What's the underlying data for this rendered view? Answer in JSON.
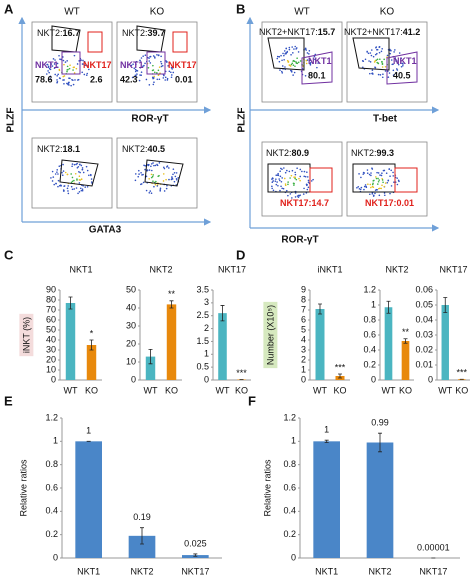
{
  "flow_panels": [
    {
      "label": "A",
      "columns": [
        "WT",
        "KO"
      ],
      "y_axis": "PLZF",
      "rows": [
        {
          "x_axis": "ROR-γT",
          "plots": [
            {
              "gates": [
                {
                  "name": "NKT2:",
                  "value": 16.7,
                  "color": "#111111"
                },
                {
                  "name": "NKT1",
                  "value": 78.6,
                  "color": "#7030a0"
                },
                {
                  "name": "NKT17",
                  "value": 2.6,
                  "color": "#e0201b"
                }
              ]
            },
            {
              "gates": [
                {
                  "name": "NKT2:",
                  "value": 39.7,
                  "color": "#111111"
                },
                {
                  "name": "NKT1",
                  "value": 42.3,
                  "color": "#7030a0"
                },
                {
                  "name": "NKT17",
                  "value": 0.01,
                  "color": "#e0201b"
                }
              ]
            }
          ]
        },
        {
          "x_axis": "GATA3",
          "plots": [
            {
              "gates": [
                {
                  "name": "NKT2:",
                  "value": 18.1,
                  "color": "#111111"
                }
              ]
            },
            {
              "gates": [
                {
                  "name": "NKT2:",
                  "value": 40.5,
                  "color": "#111111"
                }
              ]
            }
          ]
        }
      ]
    },
    {
      "label": "B",
      "columns": [
        "WT",
        "KO"
      ],
      "y_axis": "PLZF",
      "rows": [
        {
          "x_axis": "T-bet",
          "plots": [
            {
              "gates": [
                {
                  "name": "NKT2+NKT17:",
                  "value": 15.7,
                  "color": "#111111"
                },
                {
                  "name": "NKT1",
                  "value": 80.1,
                  "color": "#7030a0"
                }
              ]
            },
            {
              "gates": [
                {
                  "name": "NKT2+NKT17:",
                  "value": 41.2,
                  "color": "#111111"
                },
                {
                  "name": "NKT1",
                  "value": 40.5,
                  "color": "#7030a0"
                }
              ]
            }
          ]
        },
        {
          "x_axis": "ROR-γT",
          "plots": [
            {
              "gates": [
                {
                  "name": "NKT2:",
                  "value": 80.9,
                  "color": "#111111"
                },
                {
                  "name": "NKT17:",
                  "value": 14.7,
                  "color": "#e0201b"
                }
              ]
            },
            {
              "gates": [
                {
                  "name": "NKT2:",
                  "value": 99.3,
                  "color": "#111111"
                },
                {
                  "name": "NKT17:",
                  "value": 0.01,
                  "color": "#e0201b"
                }
              ]
            }
          ]
        }
      ]
    }
  ],
  "chart_data": [
    {
      "type": "bar",
      "panel": "C",
      "ylabel": "iNKT (%)",
      "ylabel_background": "#f4dcdc",
      "title": "NKT1",
      "categories": [
        "WT",
        "KO"
      ],
      "values": [
        77,
        35
      ],
      "errors": [
        6,
        5
      ],
      "colors": [
        "#4bb5c1",
        "#e8890c"
      ],
      "significance": [
        null,
        "*"
      ],
      "ylim": [
        0,
        90
      ],
      "yticks": [
        0,
        10,
        20,
        30,
        40,
        50,
        60,
        70,
        80,
        90
      ]
    },
    {
      "type": "bar",
      "title": "NKT2",
      "categories": [
        "WT",
        "KO"
      ],
      "values": [
        13,
        42
      ],
      "errors": [
        4,
        2
      ],
      "colors": [
        "#4bb5c1",
        "#e8890c"
      ],
      "significance": [
        null,
        "**"
      ],
      "ylim": [
        0,
        50
      ],
      "yticks": [
        0,
        10,
        20,
        30,
        40,
        50
      ]
    },
    {
      "type": "bar",
      "title": "NKT17",
      "categories": [
        "WT",
        "KO"
      ],
      "values": [
        2.6,
        0.02
      ],
      "errors": [
        0.3,
        0
      ],
      "colors": [
        "#4bb5c1",
        "#e8890c"
      ],
      "significance": [
        null,
        "***"
      ],
      "ylim": [
        0,
        3.5
      ],
      "yticks": [
        0,
        0.5,
        1,
        1.5,
        2,
        2.5,
        3,
        3.5
      ]
    },
    {
      "type": "bar",
      "panel": "D",
      "ylabel": "Number (X10⁵)",
      "ylabel_background": "#d6e9bf",
      "title": "iNKT1",
      "categories": [
        "WT",
        "KO"
      ],
      "values": [
        7.1,
        0.4
      ],
      "errors": [
        0.5,
        0.2
      ],
      "colors": [
        "#4bb5c1",
        "#e8890c"
      ],
      "significance": [
        null,
        "***"
      ],
      "ylim": [
        0,
        9
      ],
      "yticks": [
        0,
        1,
        2,
        3,
        4,
        5,
        6,
        7,
        8,
        9
      ]
    },
    {
      "type": "bar",
      "title": "NKT2",
      "categories": [
        "WT",
        "KO"
      ],
      "values": [
        0.97,
        0.52
      ],
      "errors": [
        0.08,
        0.03
      ],
      "colors": [
        "#4bb5c1",
        "#e8890c"
      ],
      "significance": [
        null,
        "**"
      ],
      "ylim": [
        0,
        1.2
      ],
      "yticks": [
        0,
        0.2,
        0.4,
        0.6,
        0.8,
        1,
        1.2
      ]
    },
    {
      "type": "bar",
      "title": "NKT17",
      "categories": [
        "WT",
        "KO"
      ],
      "values": [
        0.05,
        0.0005
      ],
      "errors": [
        0.005,
        0
      ],
      "colors": [
        "#4bb5c1",
        "#e8890c"
      ],
      "significance": [
        null,
        "***"
      ],
      "ylim": [
        0,
        0.06
      ],
      "yticks": [
        0,
        0.01,
        0.02,
        0.03,
        0.04,
        0.05,
        0.06
      ]
    },
    {
      "type": "bar",
      "panel": "E",
      "ylabel": "Relative ratios",
      "categories": [
        "NKT1",
        "NKT2",
        "NKT17"
      ],
      "values": [
        1,
        0.19,
        0.025
      ],
      "errors": [
        0,
        0.07,
        0.01
      ],
      "colors": [
        "#4a86c8",
        "#4a86c8",
        "#4a86c8"
      ],
      "show_values": true,
      "ylim": [
        0,
        1.2
      ],
      "yticks": [
        0,
        0.2,
        0.4,
        0.6,
        0.8,
        1,
        1.2
      ]
    },
    {
      "type": "bar",
      "panel": "F",
      "ylabel": "Relative ratios",
      "categories": [
        "NKT1",
        "NKT2",
        "NKT17"
      ],
      "values": [
        1,
        0.99,
        1e-05
      ],
      "errors": [
        0.01,
        0.08,
        0
      ],
      "colors": [
        "#4a86c8",
        "#4a86c8",
        "#4a86c8"
      ],
      "show_values": true,
      "ylim": [
        0,
        1.2
      ],
      "yticks": [
        0,
        0.2,
        0.4,
        0.6,
        0.8,
        1,
        1.2
      ]
    }
  ]
}
